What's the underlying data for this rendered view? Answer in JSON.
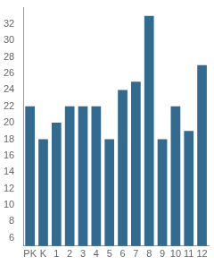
{
  "chart_data": {
    "type": "bar",
    "categories": [
      "PK",
      "K",
      "1",
      "2",
      "3",
      "4",
      "5",
      "6",
      "7",
      "8",
      "9",
      "10",
      "11",
      "12"
    ],
    "values": [
      22,
      18,
      20,
      22,
      22,
      22,
      18,
      24,
      25,
      33,
      18,
      22,
      19,
      27
    ],
    "color": "#336a90",
    "ylim": [
      5,
      34
    ],
    "yticks": [
      6,
      8,
      10,
      12,
      14,
      16,
      18,
      20,
      22,
      24,
      26,
      28,
      30,
      32
    ],
    "grid": false
  }
}
